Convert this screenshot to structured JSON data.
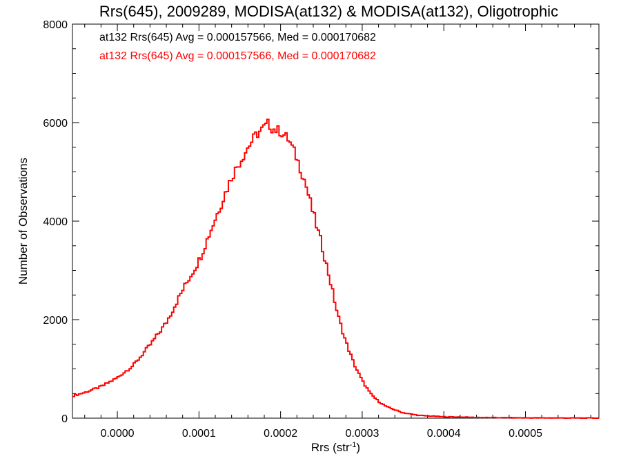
{
  "chart_data": {
    "type": "histogram",
    "title": "Rrs(645), 2009289, MODISA(at132) & MODISA(at132), Oligotrophic",
    "xlabel_main": "Rrs (str",
    "xlabel_sup": "-1",
    "xlabel_close": ")",
    "ylabel": "Number of Observations",
    "xlim": [
      -5.5e-05,
      0.00059
    ],
    "ylim": [
      0,
      8000
    ],
    "x_ticks": [
      0.0,
      0.0001,
      0.0002,
      0.0003,
      0.0004,
      0.0005
    ],
    "x_tick_labels": [
      "0.0000",
      "0.0001",
      "0.0002",
      "0.0003",
      "0.0004",
      "0.0005"
    ],
    "y_ticks": [
      0,
      2000,
      4000,
      6000,
      8000
    ],
    "y_tick_labels": [
      "0",
      "2000",
      "4000",
      "6000",
      "8000"
    ],
    "grid": false,
    "annotations": [
      {
        "text": "at132 Rrs(645) Avg = 0.000157566, Med = 0.000170682",
        "color": "#000000"
      },
      {
        "text": "at132 Rrs(645) Avg = 0.000157566, Med = 0.000170682",
        "color": "#ff0000"
      }
    ],
    "series": [
      {
        "color": "#ff0000",
        "points": [
          [
            -5.5e-05,
            450
          ],
          [
            -4e-05,
            520
          ],
          [
            -2e-05,
            640
          ],
          [
            0.0,
            820
          ],
          [
            2e-05,
            1080
          ],
          [
            4e-05,
            1480
          ],
          [
            6e-05,
            1940
          ],
          [
            8e-05,
            2600
          ],
          [
            0.0001,
            3200
          ],
          [
            0.00012,
            4050
          ],
          [
            0.00014,
            4900
          ],
          [
            0.00016,
            5500
          ],
          [
            0.00017,
            5750
          ],
          [
            0.00018,
            5900
          ],
          [
            0.000185,
            5980
          ],
          [
            0.00019,
            5880
          ],
          [
            0.0002,
            5820
          ],
          [
            0.00021,
            5650
          ],
          [
            0.00022,
            5280
          ],
          [
            0.00023,
            4800
          ],
          [
            0.00024,
            4150
          ],
          [
            0.00025,
            3550
          ],
          [
            0.00026,
            2850
          ],
          [
            0.00027,
            2100
          ],
          [
            0.00028,
            1550
          ],
          [
            0.00029,
            1100
          ],
          [
            0.0003,
            760
          ],
          [
            0.00031,
            500
          ],
          [
            0.00032,
            340
          ],
          [
            0.00033,
            230
          ],
          [
            0.00035,
            110
          ],
          [
            0.00037,
            55
          ],
          [
            0.0004,
            28
          ],
          [
            0.00045,
            12
          ],
          [
            0.0005,
            6
          ],
          [
            0.00055,
            3
          ],
          [
            0.00059,
            2
          ]
        ]
      }
    ]
  }
}
